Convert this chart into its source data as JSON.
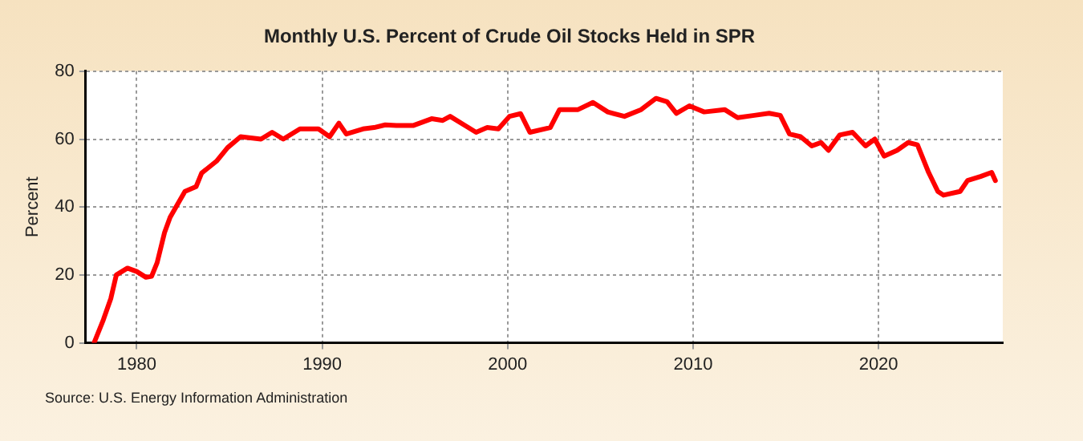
{
  "chart_data": {
    "type": "line",
    "title": "Monthly U.S. Percent of Crude Oil Stocks Held in SPR",
    "ylabel": "Percent",
    "annotations": [
      "Source: U.S. Energy Information Administration"
    ],
    "x": [
      1977.7,
      1978.2,
      1978.6,
      1978.9,
      1979.5,
      1980,
      1980.5,
      1980.8,
      1981.1,
      1981.5,
      1981.8,
      1982.6,
      1983.2,
      1983.5,
      1984.3,
      1984.9,
      1985.6,
      1986.7,
      1987.3,
      1987.9,
      1988.8,
      1989.8,
      1990.4,
      1990.9,
      1991.3,
      1992.2,
      1992.8,
      1993.4,
      1994,
      1994.9,
      1995.9,
      1996.5,
      1996.9,
      1997.7,
      1998.3,
      1998.9,
      1999.5,
      2000.1,
      2000.7,
      2001.2,
      2002.3,
      2002.8,
      2003.8,
      2004.6,
      2005.4,
      2006.3,
      2007.2,
      2008,
      2008.6,
      2009.1,
      2009.8,
      2010.6,
      2011.7,
      2012.4,
      2013.3,
      2014.1,
      2014.7,
      2015.2,
      2015.8,
      2016.4,
      2016.9,
      2017.3,
      2017.9,
      2018.6,
      2019.3,
      2019.8,
      2020.3,
      2021,
      2021.6,
      2022.1,
      2022.7,
      2023.2,
      2023.5,
      2024.4,
      2024.8,
      2025.5,
      2026.1,
      2026.3
    ],
    "series": [
      {
        "color": "#ff0000",
        "values": [
          0,
          6.8,
          13,
          20,
          22,
          21,
          19.3,
          19.6,
          23.6,
          32.5,
          37,
          44.6,
          46,
          50,
          53.5,
          57.5,
          60.7,
          60,
          62,
          60,
          63,
          63,
          60.7,
          64.7,
          61.5,
          63,
          63.4,
          64.2,
          64,
          64,
          66,
          65.5,
          66.7,
          64,
          62,
          63.4,
          63,
          66.7,
          67.5,
          62,
          63.4,
          68.7,
          68.7,
          70.8,
          68,
          66.7,
          68.7,
          72,
          71,
          67.6,
          69.8,
          68,
          68.7,
          66.3,
          67,
          67.6,
          67,
          61.5,
          60.7,
          58,
          59,
          56.7,
          61.2,
          62,
          58,
          60,
          55,
          56.7,
          59,
          58.3,
          50.2,
          44.6,
          43.5,
          44.6,
          47.8,
          49,
          50.2,
          47.8
        ]
      }
    ],
    "xlim": [
      1977.25,
      2026.7
    ],
    "xticks": [
      1980,
      1990,
      2000,
      2010,
      2020
    ],
    "ylim": [
      0,
      80
    ],
    "yticks": [
      0,
      20,
      40,
      60,
      80
    ],
    "grid": true,
    "legend": false,
    "marker": "none",
    "line_style": "solid"
  }
}
